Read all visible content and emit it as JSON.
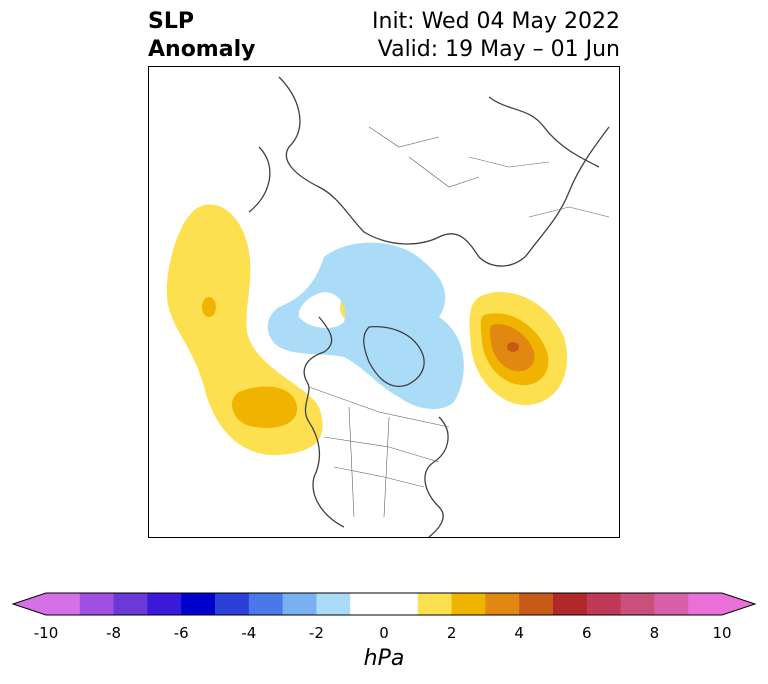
{
  "title": {
    "left_line1": "SLP",
    "left_line2": "Anomaly",
    "right_line1": "Init: Wed 04 May 2022",
    "right_line2": "Valid: 19 May – 01 Jun"
  },
  "colorbar": {
    "unit": "hPa",
    "ticks": [
      "-10",
      "-8",
      "-6",
      "-4",
      "-2",
      "0",
      "2",
      "4",
      "6",
      "8",
      "10"
    ],
    "colors": [
      "#d670e6",
      "#a050e0",
      "#6a3ad8",
      "#3a1ad8",
      "#0000cc",
      "#2a40d8",
      "#4a78e8",
      "#78b0f0",
      "#aadcf8",
      "#ffffff",
      "#ffffff",
      "#fde050",
      "#f0b400",
      "#e08810",
      "#c85a18",
      "#b02828",
      "#c03858",
      "#c8507a",
      "#d860a8",
      "#e870d8"
    ],
    "min_extend_color": "#d670e6",
    "max_extend_color": "#e870d8"
  },
  "map": {
    "projection": "north-polar-stereographic",
    "features": [
      "coastlines",
      "country-borders",
      "us-state-borders"
    ]
  }
}
